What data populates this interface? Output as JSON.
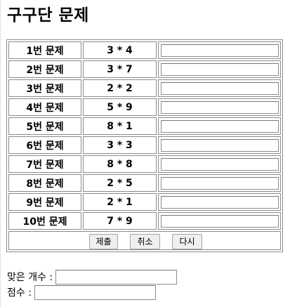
{
  "page": {
    "title": "구구단 문제"
  },
  "quiz": {
    "rows": [
      {
        "label": "1번 문제",
        "expression": "3 * 4",
        "answer": ""
      },
      {
        "label": "2번 문제",
        "expression": "3 * 7",
        "answer": ""
      },
      {
        "label": "3번 문제",
        "expression": "2 * 2",
        "answer": ""
      },
      {
        "label": "4번 문제",
        "expression": "5 * 9",
        "answer": ""
      },
      {
        "label": "5번 문제",
        "expression": "8 * 1",
        "answer": ""
      },
      {
        "label": "6번 문제",
        "expression": "3 * 3",
        "answer": ""
      },
      {
        "label": "7번 문제",
        "expression": "8 * 8",
        "answer": ""
      },
      {
        "label": "8번 문제",
        "expression": "2 * 5",
        "answer": ""
      },
      {
        "label": "9번 문제",
        "expression": "2 * 1",
        "answer": ""
      },
      {
        "label": "10번 문제",
        "expression": "7 * 9",
        "answer": ""
      }
    ],
    "buttons": {
      "submit": "제출",
      "cancel": "취소",
      "retry": "다시"
    }
  },
  "results": {
    "correct_count_label": "맞은 개수 :",
    "correct_count_value": "",
    "score_label": "점수 :",
    "score_value": ""
  }
}
